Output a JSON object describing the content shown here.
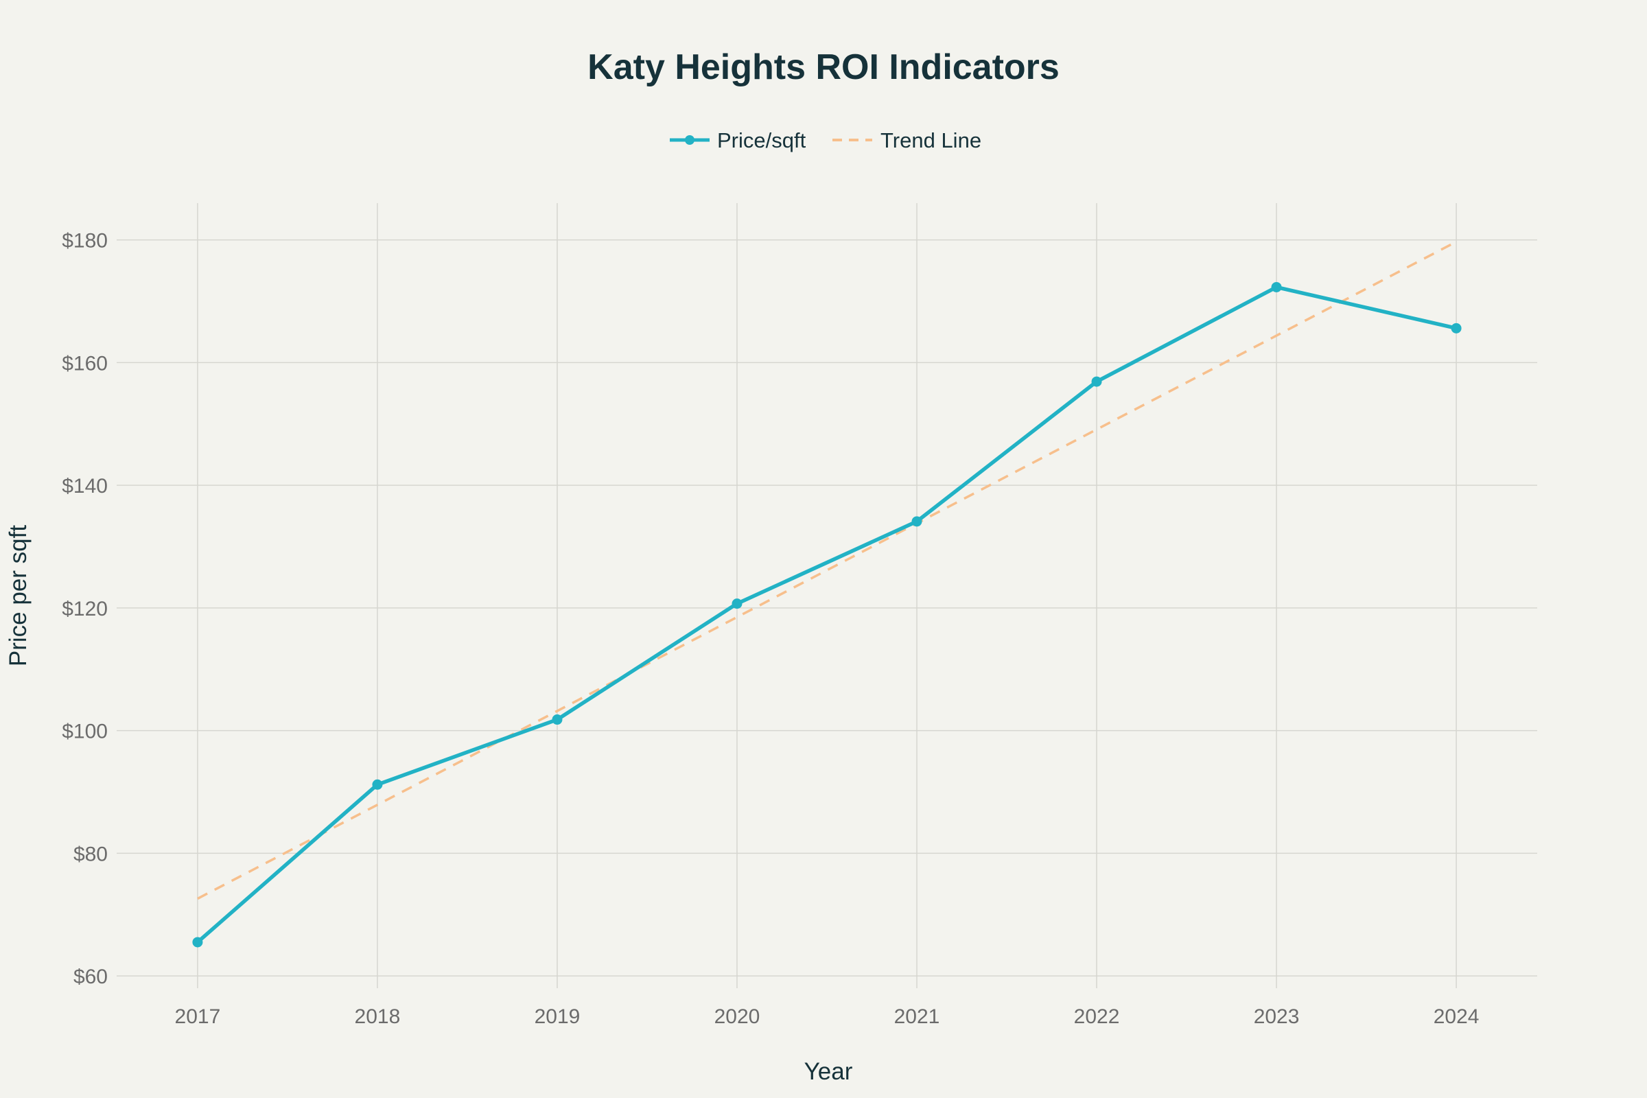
{
  "chart_data": {
    "type": "line",
    "title": "Katy Heights ROI Indicators",
    "xlabel": "Year",
    "ylabel": "Price per sqft",
    "x": [
      2017,
      2018,
      2019,
      2020,
      2021,
      2022,
      2023,
      2024
    ],
    "x_tick_labels": [
      "2017",
      "2018",
      "2019",
      "2020",
      "2021",
      "2022",
      "2023",
      "2024"
    ],
    "y_tick_values": [
      60,
      80,
      100,
      120,
      140,
      160,
      180
    ],
    "y_tick_labels": [
      "$60",
      "$80",
      "$100",
      "$120",
      "$140",
      "$160",
      "$180"
    ],
    "ylim": [
      58,
      186
    ],
    "xlim": [
      2016.55,
      2024.45
    ],
    "grid": true,
    "legend_position": "top-center",
    "series": [
      {
        "name": "Price/sqft",
        "style": "solid-markers",
        "color": "#22b2c5",
        "values": [
          65.5,
          91.2,
          101.8,
          120.7,
          134.1,
          156.9,
          172.3,
          165.6
        ]
      },
      {
        "name": "Trend Line",
        "style": "dashed",
        "color": "#f7bf8c",
        "values": [
          72.6,
          87.9,
          103.2,
          118.5,
          133.8,
          149.1,
          164.4,
          179.7
        ]
      }
    ]
  }
}
